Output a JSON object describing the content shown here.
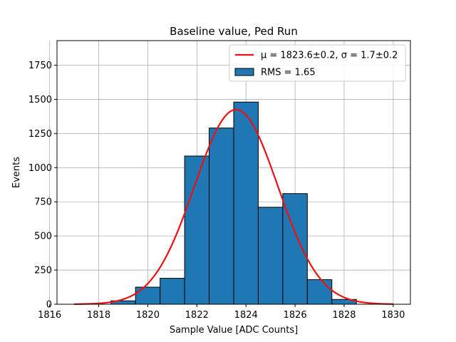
{
  "chart_data": {
    "type": "bar",
    "title": "Baseline value, Ped Run",
    "xlabel": "Sample Value [ADC Counts]",
    "ylabel": "Events",
    "xlim": [
      1816.3,
      1830.7
    ],
    "ylim": [
      0,
      1930
    ],
    "grid": true,
    "legend_position": "top-right",
    "x_ticks": [
      1816,
      1818,
      1820,
      1822,
      1824,
      1826,
      1828,
      1830
    ],
    "x_tick_labels": [
      "1816",
      "1818",
      "1820",
      "1822",
      "1824",
      "1826",
      "1828",
      "1830"
    ],
    "y_ticks": [
      0,
      250,
      500,
      750,
      1000,
      1250,
      1500,
      1750
    ],
    "y_tick_labels": [
      "0",
      "250",
      "500",
      "750",
      "1000",
      "1250",
      "1500",
      "1750"
    ],
    "bin_width": 1,
    "bins": [
      {
        "x0": 1818.5,
        "value": 25
      },
      {
        "x0": 1819.5,
        "value": 125
      },
      {
        "x0": 1820.5,
        "value": 190
      },
      {
        "x0": 1821.5,
        "value": 1085
      },
      {
        "x0": 1822.5,
        "value": 1290
      },
      {
        "x0": 1823.5,
        "value": 1480
      },
      {
        "x0": 1824.5,
        "value": 710
      },
      {
        "x0": 1825.5,
        "value": 810
      },
      {
        "x0": 1826.5,
        "value": 180
      },
      {
        "x0": 1827.5,
        "value": 35
      }
    ],
    "fit": {
      "type": "gaussian",
      "mu": 1823.6,
      "sigma": 1.7,
      "amplitude": 1425,
      "x_range": [
        1817,
        1830
      ]
    },
    "legend": [
      {
        "label": "μ = 1823.6±0.2, σ = 1.7±0.2",
        "kind": "line",
        "color": "#ee1111"
      },
      {
        "label": "RMS = 1.65",
        "kind": "patch",
        "color": "#1f77b4"
      }
    ],
    "colors": {
      "bar_fill": "#1f77b4",
      "bar_edge": "#000000",
      "fit_line": "#ee1111",
      "grid": "#b0b0b0"
    }
  }
}
